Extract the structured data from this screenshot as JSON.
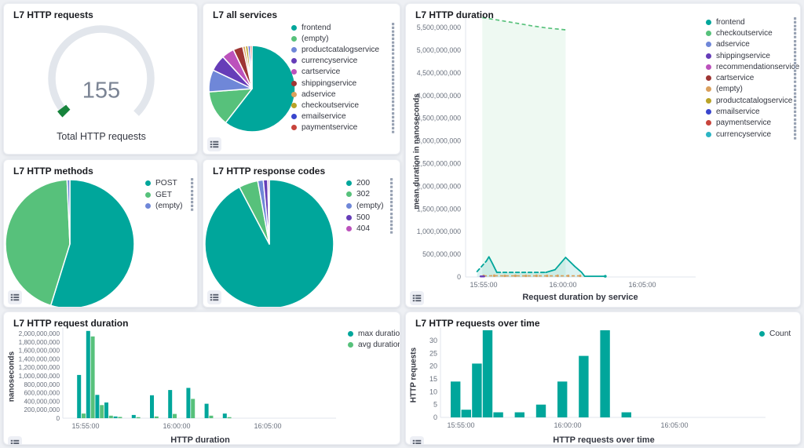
{
  "colors": {
    "background": "#eef0f4",
    "panel": "#ffffff",
    "axis_line": "#e2e6ec",
    "tick_text": "#69707d",
    "teal": "#00a69b",
    "green": "#57c17b"
  },
  "gauge_panel": {
    "title": "L7 HTTP requests",
    "value": "155",
    "caption": "Total HTTP requests",
    "track_color": "#e2e6ec",
    "indicator_color": "#17833c",
    "fraction": 0.03,
    "chart_data": {
      "type": "gauge",
      "value": 155,
      "label": "Total HTTP requests"
    }
  },
  "services_panel": {
    "title": "L7 all services",
    "chart_data": {
      "type": "pie",
      "slices": [
        {
          "label": "frontend",
          "pct": 60.5,
          "color": "#00a69b"
        },
        {
          "label": "(empty)",
          "pct": 13.3,
          "color": "#57c17b"
        },
        {
          "label": "productcatalogservice",
          "pct": 8.3,
          "color": "#6f87d8"
        },
        {
          "label": "currencyservice",
          "pct": 6.1,
          "color": "#663db8"
        },
        {
          "label": "cartservice",
          "pct": 4.7,
          "color": "#bc52bc"
        },
        {
          "label": "shippingservice",
          "pct": 3.6,
          "color": "#9e3533"
        },
        {
          "label": "adservice",
          "pct": 1.0,
          "color": "#daa05d"
        },
        {
          "label": "checkoutservice",
          "pct": 1.0,
          "color": "#b9a328"
        },
        {
          "label": "emailservice",
          "pct": 0.8,
          "color": "#3945cd"
        },
        {
          "label": "paymentservice",
          "pct": 0.7,
          "color": "#c8443c"
        }
      ]
    }
  },
  "methods_panel": {
    "title": "L7 HTTP methods",
    "chart_data": {
      "type": "pie",
      "slices": [
        {
          "label": "POST",
          "pct": 54.8,
          "color": "#00a69b"
        },
        {
          "label": "GET",
          "pct": 44.5,
          "color": "#57c17b"
        },
        {
          "label": "(empty)",
          "pct": 0.7,
          "color": "#6f87d8"
        }
      ]
    }
  },
  "codes_panel": {
    "title": "L7 HTTP response codes",
    "chart_data": {
      "type": "pie",
      "slices": [
        {
          "label": "200",
          "pct": 92.3,
          "color": "#00a69b"
        },
        {
          "label": "302",
          "pct": 4.8,
          "color": "#57c17b"
        },
        {
          "label": "(empty)",
          "pct": 1.4,
          "color": "#6f87d8"
        },
        {
          "label": "500",
          "pct": 1.1,
          "color": "#663db8"
        },
        {
          "label": "404",
          "pct": 0.4,
          "color": "#bc52bc"
        }
      ]
    }
  },
  "duration_panel": {
    "title": "L7 HTTP duration",
    "ylabel": "mean duration in nanoseconds",
    "xlabel": "Request duration by service",
    "yticks": [
      0,
      500000000,
      1000000000,
      1500000000,
      2000000000,
      2500000000,
      3000000000,
      3500000000,
      4000000000,
      4500000000,
      5000000000,
      5500000000
    ],
    "xticks": [
      "15:55:00",
      "16:00:00",
      "16:05:00"
    ],
    "legend": [
      {
        "label": "frontend",
        "color": "#00a69b"
      },
      {
        "label": "checkoutservice",
        "color": "#57c17b"
      },
      {
        "label": "adservice",
        "color": "#6f87d8"
      },
      {
        "label": "shippingservice",
        "color": "#663db8"
      },
      {
        "label": "recommendationservice",
        "color": "#bc52bc"
      },
      {
        "label": "cartservice",
        "color": "#9e3533"
      },
      {
        "label": "(empty)",
        "color": "#daa05d"
      },
      {
        "label": "productcatalogservice",
        "color": "#b9a328"
      },
      {
        "label": "emailservice",
        "color": "#3945cd"
      },
      {
        "label": "paymentservice",
        "color": "#c8443c"
      },
      {
        "label": "currencyservice",
        "color": "#2cb5c4"
      }
    ],
    "chart_data": {
      "type": "line",
      "series": [
        {
          "name": "checkoutservice",
          "color": "#57c17b",
          "style": "dashed",
          "fill": true,
          "points": [
            [
              "15:54:55",
              5720000000
            ],
            [
              "15:56:00",
              5660000000
            ],
            [
              "15:57:00",
              5600000000
            ],
            [
              "15:58:00",
              5540000000
            ],
            [
              "15:59:00",
              5490000000
            ],
            [
              "16:00:10",
              5450000000
            ]
          ]
        },
        {
          "name": "frontend",
          "color": "#00a69b",
          "fill": true,
          "segments": [
            {
              "style": "dashed",
              "points": [
                [
                  "15:54:35",
                  120000000
                ],
                [
                  "15:55:10",
                  350000000
                ]
              ]
            },
            {
              "style": "solid",
              "points": [
                [
                  "15:55:10",
                  350000000
                ],
                [
                  "15:55:20",
                  445000000
                ],
                [
                  "15:55:33",
                  300000000
                ],
                [
                  "15:55:50",
                  100000000
                ]
              ]
            },
            {
              "style": "dashed",
              "points": [
                [
                  "15:55:50",
                  100000000
                ],
                [
                  "15:58:55",
                  100000000
                ]
              ]
            },
            {
              "style": "solid",
              "points": [
                [
                  "15:58:55",
                  100000000
                ],
                [
                  "15:59:30",
                  160000000
                ],
                [
                  "16:00:10",
                  430000000
                ],
                [
                  "16:00:45",
                  230000000
                ],
                [
                  "16:01:10",
                  105000000
                ],
                [
                  "16:01:22",
                  15000000
                ],
                [
                  "16:02:40",
                  15000000
                ]
              ]
            }
          ]
        },
        {
          "name": "(empty)",
          "color": "#daa05d",
          "style": "dashed",
          "markers": true,
          "points": [
            [
              "15:55:00",
              25000000
            ],
            [
              "15:55:40",
              28000000
            ],
            [
              "15:56:20",
              25000000
            ],
            [
              "15:57:00",
              26000000
            ],
            [
              "15:57:40",
              25000000
            ],
            [
              "15:58:20",
              26000000
            ],
            [
              "15:59:00",
              25000000
            ],
            [
              "15:59:40",
              26000000
            ],
            [
              "16:00:20",
              25000000
            ],
            [
              "16:01:05",
              25000000
            ]
          ]
        },
        {
          "name": "shippingservice",
          "color": "#663db8",
          "style": "solid",
          "points": [
            [
              "15:54:48",
              12000000
            ],
            [
              "15:55:02",
              12000000
            ]
          ]
        }
      ]
    }
  },
  "reqdur_panel": {
    "title": "L7 HTTP request duration",
    "ylabel": "nanoseconds",
    "xlabel": "HTTP duration",
    "yticks": [
      0,
      200000000,
      400000000,
      600000000,
      800000000,
      1000000000,
      1200000000,
      1400000000,
      1600000000,
      1800000000,
      2000000000
    ],
    "xticks": [
      "15:55:00",
      "16:00:00",
      "16:05:00"
    ],
    "legend": [
      {
        "label": "max duration",
        "color": "#00a69b"
      },
      {
        "label": "avg duration",
        "color": "#57c17b"
      }
    ],
    "chart_data": {
      "type": "bar",
      "x": [
        "15:54:30",
        "15:55:00",
        "15:55:30",
        "15:56:00",
        "15:56:30",
        "15:57:30",
        "15:58:30",
        "15:59:30",
        "16:00:30",
        "16:01:30",
        "16:02:30"
      ],
      "series": [
        {
          "name": "max duration",
          "color": "#00a69b",
          "values": [
            1020000000,
            2060000000,
            550000000,
            370000000,
            40000000,
            75000000,
            540000000,
            665000000,
            715000000,
            340000000,
            110000000
          ]
        },
        {
          "name": "avg duration",
          "color": "#57c17b",
          "values": [
            110000000,
            1930000000,
            310000000,
            60000000,
            30000000,
            25000000,
            40000000,
            100000000,
            455000000,
            60000000,
            25000000
          ]
        }
      ]
    }
  },
  "overtime_panel": {
    "title": "L7 HTTP requests over time",
    "ylabel": "HTTP requests",
    "xlabel": "HTTP requests over time",
    "yticks": [
      0,
      5,
      10,
      15,
      20,
      25,
      30
    ],
    "xticks": [
      "15:55:00",
      "16:00:00",
      "16:05:00"
    ],
    "legend": [
      {
        "label": "Count",
        "color": "#00a69b"
      }
    ],
    "chart_data": {
      "type": "bar",
      "x": [
        "15:54:30",
        "15:55:00",
        "15:55:30",
        "15:56:00",
        "15:56:30",
        "15:57:30",
        "15:58:30",
        "15:59:30",
        "16:00:30",
        "16:01:30",
        "16:02:30"
      ],
      "series": [
        {
          "name": "Count",
          "color": "#00a69b",
          "values": [
            14,
            3,
            21,
            34,
            2,
            2,
            5,
            14,
            24,
            34,
            2
          ]
        }
      ]
    }
  }
}
